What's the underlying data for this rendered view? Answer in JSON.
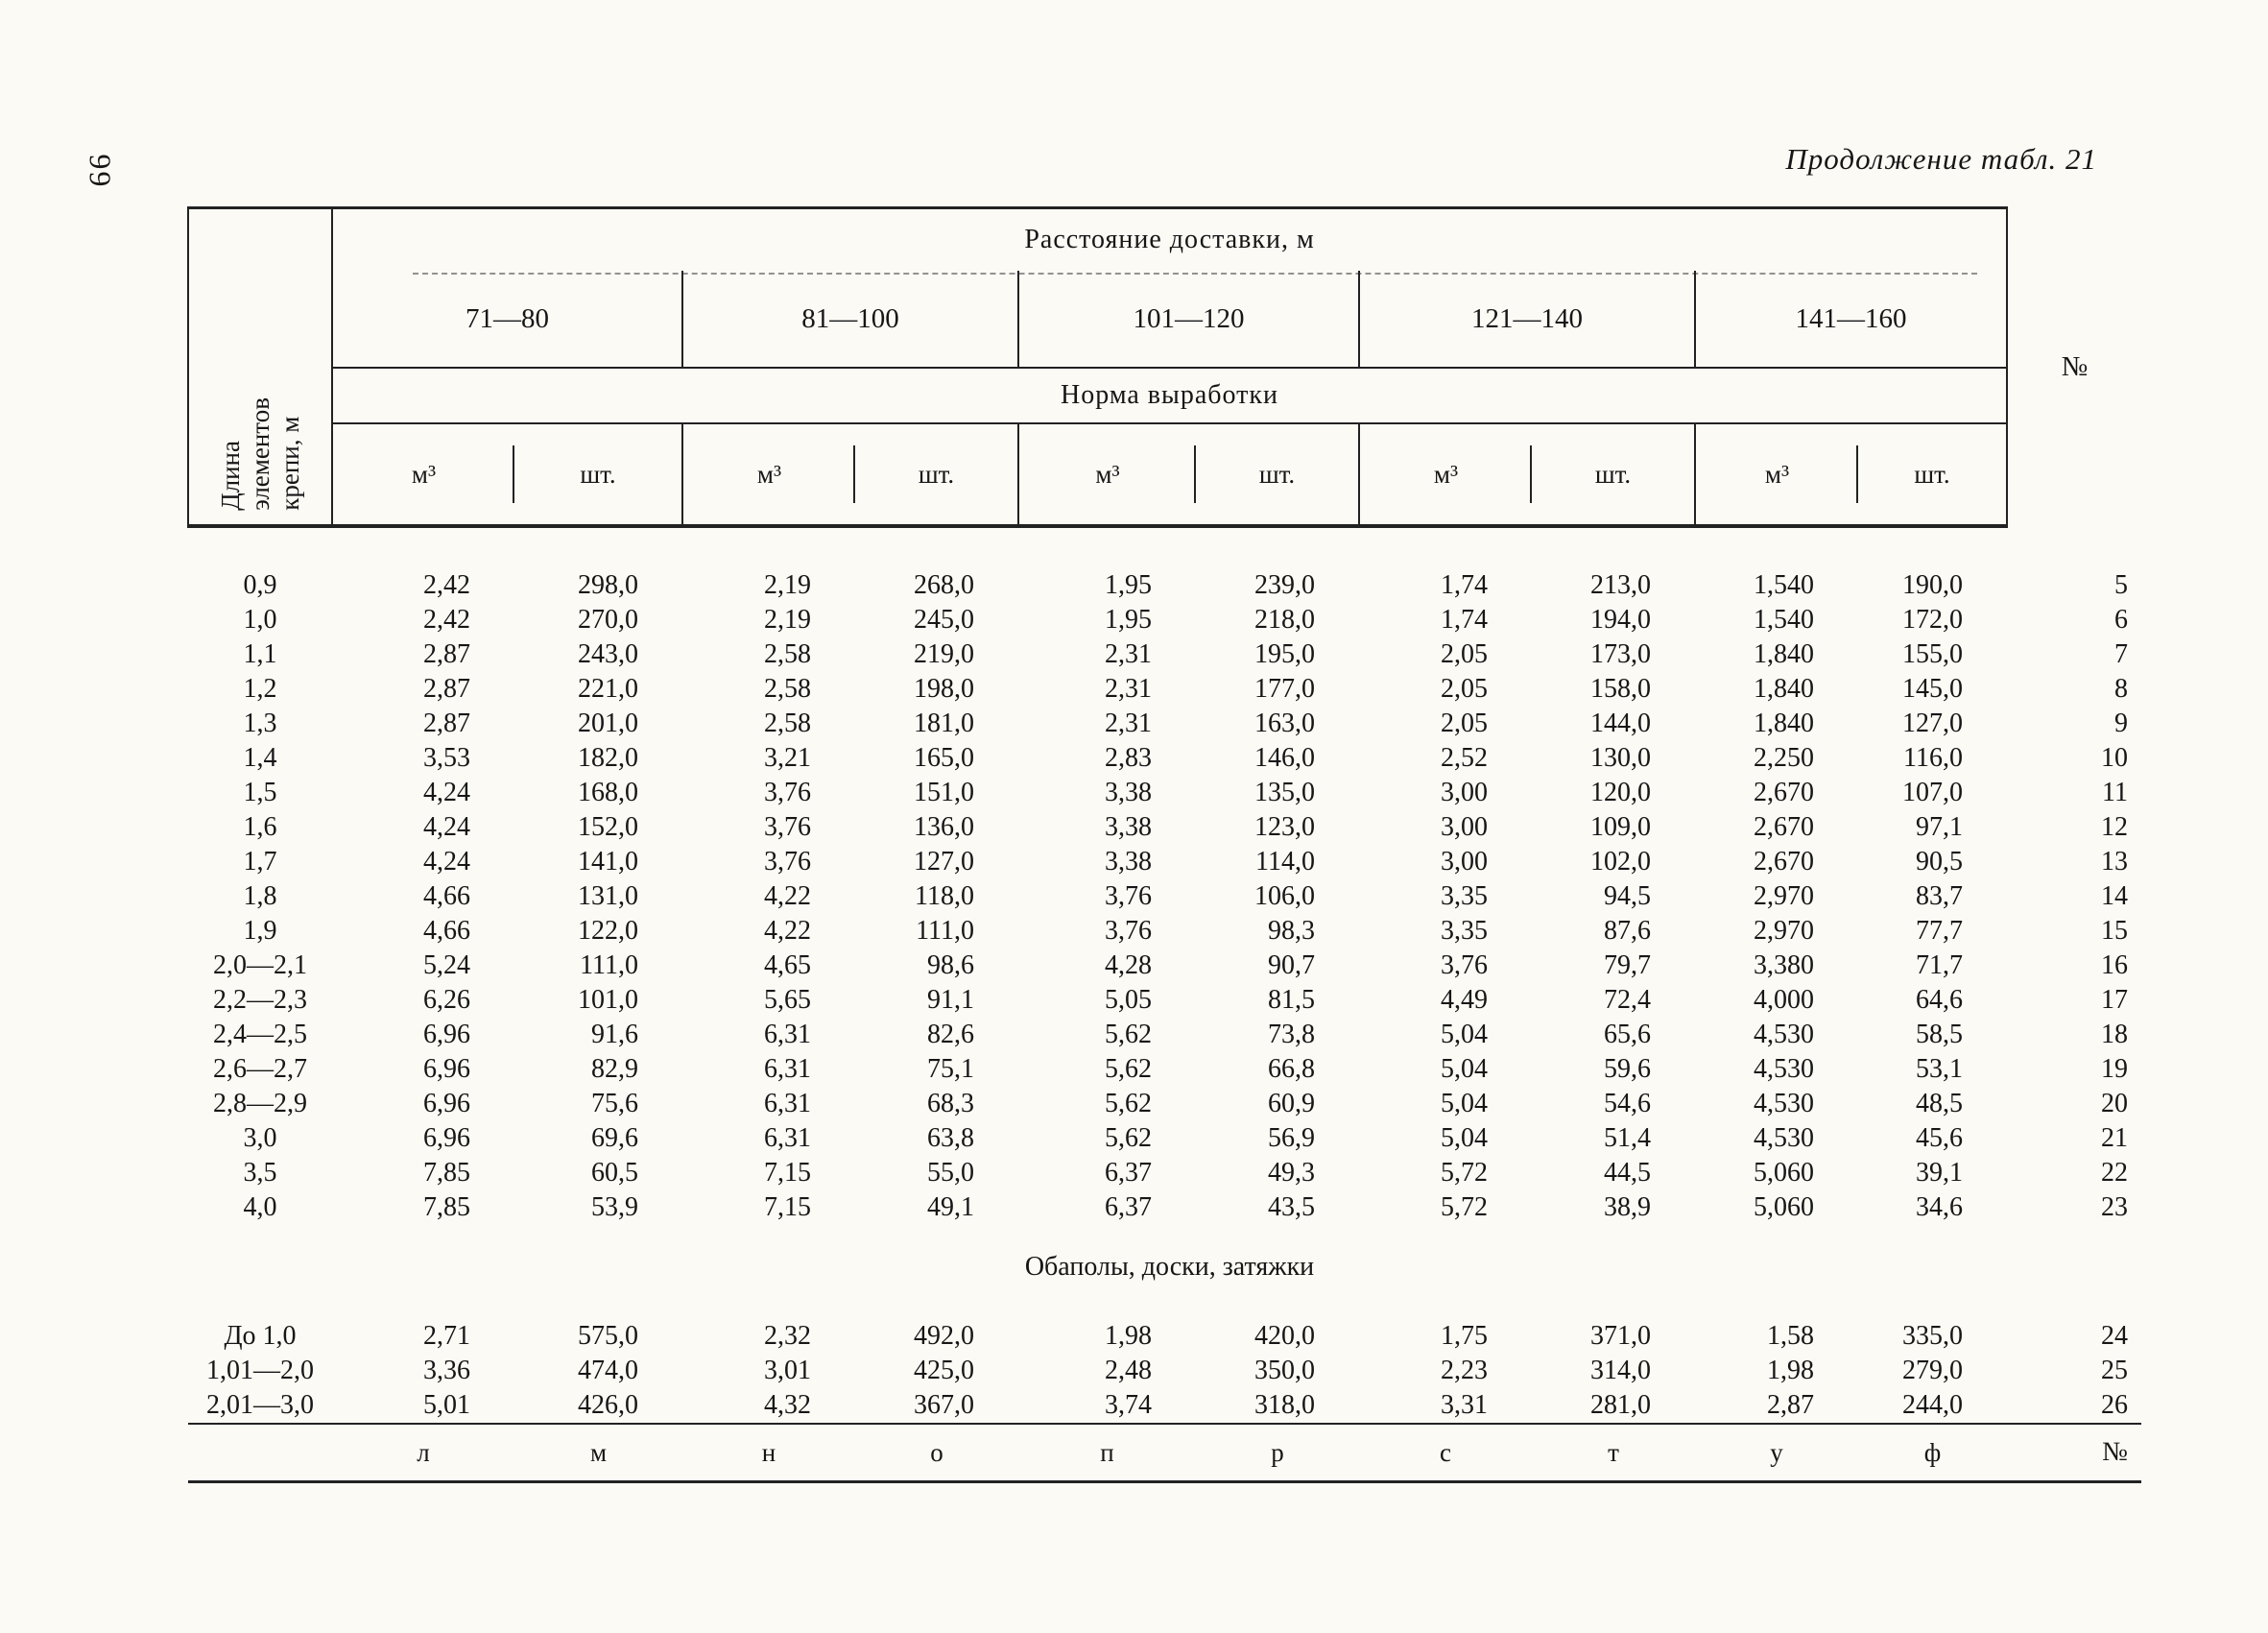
{
  "page": {
    "number": "66",
    "caption": "Продолжение табл. 21"
  },
  "table": {
    "length_header": "Длина\nэлементов\nкрепи, м",
    "distance_header": "Расстояние доставки, м",
    "norm_header": "Норма выработки",
    "number_header": "№",
    "ranges": [
      "71—80",
      "81—100",
      "101—120",
      "121—140",
      "141—160"
    ],
    "unit_m3": "м³",
    "unit_pcs": "шт.",
    "rows": [
      {
        "label": "0,9",
        "values": [
          "2,42",
          "298,0",
          "2,19",
          "268,0",
          "1,95",
          "239,0",
          "1,74",
          "213,0",
          "1,540",
          "190,0"
        ],
        "num": "5"
      },
      {
        "label": "1,0",
        "values": [
          "2,42",
          "270,0",
          "2,19",
          "245,0",
          "1,95",
          "218,0",
          "1,74",
          "194,0",
          "1,540",
          "172,0"
        ],
        "num": "6"
      },
      {
        "label": "1,1",
        "values": [
          "2,87",
          "243,0",
          "2,58",
          "219,0",
          "2,31",
          "195,0",
          "2,05",
          "173,0",
          "1,840",
          "155,0"
        ],
        "num": "7"
      },
      {
        "label": "1,2",
        "values": [
          "2,87",
          "221,0",
          "2,58",
          "198,0",
          "2,31",
          "177,0",
          "2,05",
          "158,0",
          "1,840",
          "145,0"
        ],
        "num": "8"
      },
      {
        "label": "1,3",
        "values": [
          "2,87",
          "201,0",
          "2,58",
          "181,0",
          "2,31",
          "163,0",
          "2,05",
          "144,0",
          "1,840",
          "127,0"
        ],
        "num": "9"
      },
      {
        "label": "1,4",
        "values": [
          "3,53",
          "182,0",
          "3,21",
          "165,0",
          "2,83",
          "146,0",
          "2,52",
          "130,0",
          "2,250",
          "116,0"
        ],
        "num": "10"
      },
      {
        "label": "1,5",
        "values": [
          "4,24",
          "168,0",
          "3,76",
          "151,0",
          "3,38",
          "135,0",
          "3,00",
          "120,0",
          "2,670",
          "107,0"
        ],
        "num": "11"
      },
      {
        "label": "1,6",
        "values": [
          "4,24",
          "152,0",
          "3,76",
          "136,0",
          "3,38",
          "123,0",
          "3,00",
          "109,0",
          "2,670",
          "97,1"
        ],
        "num": "12"
      },
      {
        "label": "1,7",
        "values": [
          "4,24",
          "141,0",
          "3,76",
          "127,0",
          "3,38",
          "114,0",
          "3,00",
          "102,0",
          "2,670",
          "90,5"
        ],
        "num": "13"
      },
      {
        "label": "1,8",
        "values": [
          "4,66",
          "131,0",
          "4,22",
          "118,0",
          "3,76",
          "106,0",
          "3,35",
          "94,5",
          "2,970",
          "83,7"
        ],
        "num": "14"
      },
      {
        "label": "1,9",
        "values": [
          "4,66",
          "122,0",
          "4,22",
          "111,0",
          "3,76",
          "98,3",
          "3,35",
          "87,6",
          "2,970",
          "77,7"
        ],
        "num": "15"
      },
      {
        "label": "2,0—2,1",
        "values": [
          "5,24",
          "111,0",
          "4,65",
          "98,6",
          "4,28",
          "90,7",
          "3,76",
          "79,7",
          "3,380",
          "71,7"
        ],
        "num": "16"
      },
      {
        "label": "2,2—2,3",
        "values": [
          "6,26",
          "101,0",
          "5,65",
          "91,1",
          "5,05",
          "81,5",
          "4,49",
          "72,4",
          "4,000",
          "64,6"
        ],
        "num": "17"
      },
      {
        "label": "2,4—2,5",
        "values": [
          "6,96",
          "91,6",
          "6,31",
          "82,6",
          "5,62",
          "73,8",
          "5,04",
          "65,6",
          "4,530",
          "58,5"
        ],
        "num": "18"
      },
      {
        "label": "2,6—2,7",
        "values": [
          "6,96",
          "82,9",
          "6,31",
          "75,1",
          "5,62",
          "66,8",
          "5,04",
          "59,6",
          "4,530",
          "53,1"
        ],
        "num": "19"
      },
      {
        "label": "2,8—2,9",
        "values": [
          "6,96",
          "75,6",
          "6,31",
          "68,3",
          "5,62",
          "60,9",
          "5,04",
          "54,6",
          "4,530",
          "48,5"
        ],
        "num": "20"
      },
      {
        "label": "3,0",
        "values": [
          "6,96",
          "69,6",
          "6,31",
          "63,8",
          "5,62",
          "56,9",
          "5,04",
          "51,4",
          "4,530",
          "45,6"
        ],
        "num": "21"
      },
      {
        "label": "3,5",
        "values": [
          "7,85",
          "60,5",
          "7,15",
          "55,0",
          "6,37",
          "49,3",
          "5,72",
          "44,5",
          "5,060",
          "39,1"
        ],
        "num": "22"
      },
      {
        "label": "4,0",
        "values": [
          "7,85",
          "53,9",
          "7,15",
          "49,1",
          "6,37",
          "43,5",
          "5,72",
          "38,9",
          "5,060",
          "34,6"
        ],
        "num": "23"
      }
    ],
    "section_title": "Обаполы, доски, затяжки",
    "section_rows": [
      {
        "label": "До 1,0",
        "values": [
          "2,71",
          "575,0",
          "2,32",
          "492,0",
          "1,98",
          "420,0",
          "1,75",
          "371,0",
          "1,58",
          "335,0"
        ],
        "num": "24"
      },
      {
        "label": "1,01—2,0",
        "values": [
          "3,36",
          "474,0",
          "3,01",
          "425,0",
          "2,48",
          "350,0",
          "2,23",
          "314,0",
          "1,98",
          "279,0"
        ],
        "num": "25"
      },
      {
        "label": "2,01—3,0",
        "values": [
          "5,01",
          "426,0",
          "4,32",
          "367,0",
          "3,74",
          "318,0",
          "3,31",
          "281,0",
          "2,87",
          "244,0"
        ],
        "num": "26"
      }
    ],
    "letters": [
      "л",
      "м",
      "н",
      "о",
      "п",
      "р",
      "с",
      "т",
      "у",
      "ф"
    ],
    "letters_num": "№"
  }
}
